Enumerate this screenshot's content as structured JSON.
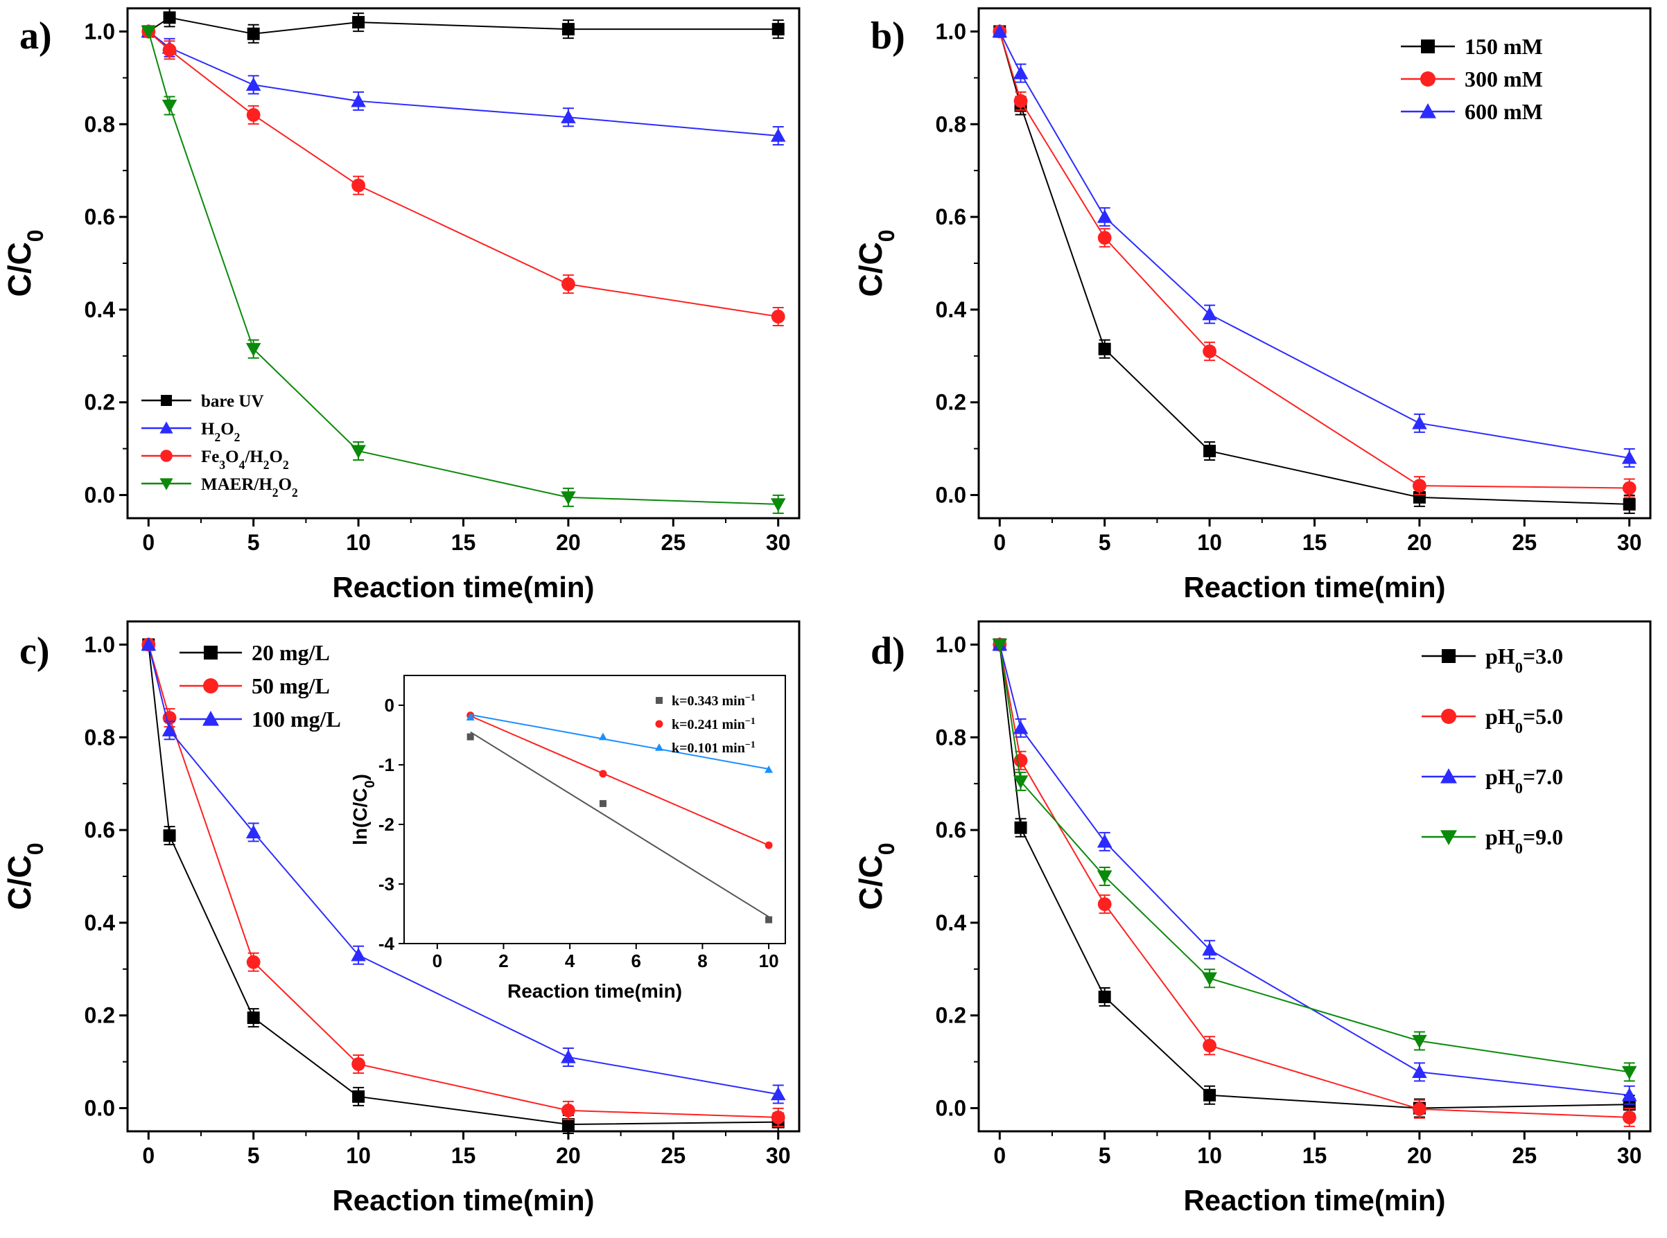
{
  "chart_data": [
    {
      "panel": "a)",
      "type": "line",
      "xlabel": "Reaction time(min)",
      "ylabel": "C/C0",
      "xlim": [
        -1,
        31
      ],
      "ylim": [
        -0.05,
        1.05
      ],
      "xticks": [
        0,
        5,
        10,
        15,
        20,
        25,
        30
      ],
      "yticks": [
        "0.0",
        "0.2",
        "0.4",
        "0.6",
        "0.8",
        "1.0"
      ],
      "legend_position": "bottom-left",
      "series": [
        {
          "name": "bare UV",
          "label_html": "bare UV",
          "color": "#000000",
          "marker": "square",
          "x": [
            0,
            1,
            5,
            10,
            20,
            30
          ],
          "y": [
            1.0,
            1.03,
            0.995,
            1.02,
            1.005,
            1.005
          ]
        },
        {
          "name": "H2O2",
          "label_html": "H<tspan baseline-shift='sub' font-size='70%'>2</tspan>O<tspan baseline-shift='sub' font-size='70%'>2</tspan>",
          "color": "#2b2bff",
          "marker": "triangle-up",
          "x": [
            0,
            1,
            5,
            10,
            20,
            30
          ],
          "y": [
            1.0,
            0.965,
            0.885,
            0.85,
            0.815,
            0.775
          ]
        },
        {
          "name": "Fe3O4/H2O2",
          "label_html": "Fe<tspan baseline-shift='sub' font-size='70%'>3</tspan>O<tspan baseline-shift='sub' font-size='70%'>4</tspan>/H<tspan baseline-shift='sub' font-size='70%'>2</tspan>O<tspan baseline-shift='sub' font-size='70%'>2</tspan>",
          "color": "#ff2020",
          "marker": "circle",
          "x": [
            0,
            1,
            5,
            10,
            20,
            30
          ],
          "y": [
            1.0,
            0.96,
            0.82,
            0.668,
            0.455,
            0.385
          ]
        },
        {
          "name": "MAER/H2O2",
          "label_html": "MAER/H<tspan baseline-shift='sub' font-size='70%'>2</tspan>O<tspan baseline-shift='sub' font-size='70%'>2</tspan>",
          "color": "#0a8a0a",
          "marker": "triangle-down",
          "x": [
            0,
            1,
            5,
            10,
            20,
            30
          ],
          "y": [
            1.0,
            0.84,
            0.315,
            0.095,
            -0.005,
            -0.02
          ]
        }
      ]
    },
    {
      "panel": "b)",
      "type": "line",
      "xlabel": "Reaction time(min)",
      "ylabel": "C/C0",
      "xlim": [
        -1,
        31
      ],
      "ylim": [
        -0.05,
        1.05
      ],
      "xticks": [
        0,
        5,
        10,
        15,
        20,
        25,
        30
      ],
      "yticks": [
        "0.0",
        "0.2",
        "0.4",
        "0.6",
        "0.8",
        "1.0"
      ],
      "legend_position": "top-right",
      "series": [
        {
          "name": "150 mM",
          "label_html": "150 mM",
          "color": "#000000",
          "marker": "square",
          "x": [
            0,
            1,
            5,
            10,
            20,
            30
          ],
          "y": [
            1.0,
            0.84,
            0.315,
            0.095,
            -0.005,
            -0.02
          ]
        },
        {
          "name": "300 mM",
          "label_html": "300 mM",
          "color": "#ff2020",
          "marker": "circle",
          "x": [
            0,
            1,
            5,
            10,
            20,
            30
          ],
          "y": [
            1.0,
            0.85,
            0.555,
            0.31,
            0.02,
            0.015
          ]
        },
        {
          "name": "600 mM",
          "label_html": "600 mM",
          "color": "#2b2bff",
          "marker": "triangle-up",
          "x": [
            0,
            1,
            5,
            10,
            20,
            30
          ],
          "y": [
            1.0,
            0.91,
            0.6,
            0.39,
            0.155,
            0.08
          ]
        }
      ]
    },
    {
      "panel": "c)",
      "type": "line",
      "xlabel": "Reaction time(min)",
      "ylabel": "C/C0",
      "xlim": [
        -1,
        31
      ],
      "ylim": [
        -0.05,
        1.05
      ],
      "xticks": [
        0,
        5,
        10,
        15,
        20,
        25,
        30
      ],
      "yticks": [
        "0.0",
        "0.2",
        "0.4",
        "0.6",
        "0.8",
        "1.0"
      ],
      "legend_position": "top-left",
      "series": [
        {
          "name": "20 mg/L",
          "label_html": "20 mg/L",
          "color": "#000000",
          "marker": "square",
          "x": [
            0,
            1,
            5,
            10,
            20,
            30
          ],
          "y": [
            1.0,
            0.588,
            0.195,
            0.025,
            -0.035,
            -0.03
          ]
        },
        {
          "name": "50 mg/L",
          "label_html": "50 mg/L",
          "color": "#ff2020",
          "marker": "circle",
          "x": [
            0,
            1,
            5,
            10,
            20,
            30
          ],
          "y": [
            1.0,
            0.842,
            0.315,
            0.095,
            -0.005,
            -0.02
          ]
        },
        {
          "name": "100 mg/L",
          "label_html": "100 mg/L",
          "color": "#2b2bff",
          "marker": "triangle-up",
          "x": [
            0,
            1,
            5,
            10,
            20,
            30
          ],
          "y": [
            1.0,
            0.815,
            0.595,
            0.33,
            0.11,
            0.03
          ]
        }
      ],
      "inset": {
        "type": "scatter",
        "xlabel": "Reaction time(min)",
        "ylabel": "ln(C/C0)",
        "xlim": [
          -1,
          10.5
        ],
        "ylim": [
          -4,
          0.5
        ],
        "xticks": [
          0,
          2,
          4,
          6,
          8,
          10
        ],
        "yticks": [
          0,
          -1,
          -2,
          -3,
          -4
        ],
        "legend_position": "top-right",
        "series": [
          {
            "name": "k=0.343 min-1",
            "label_html": "k=0.343 min<tspan baseline-shift='super' font-size='70%'>−1</tspan>",
            "color": "#555555",
            "marker": "square",
            "x": [
              1,
              5,
              10
            ],
            "y": [
              -0.53,
              -1.65,
              -3.6
            ],
            "fit": [
              [
                1,
                -0.45
              ],
              [
                10,
                -3.55
              ]
            ]
          },
          {
            "name": "k=0.241 min-1",
            "label_html": "k=0.241 min<tspan baseline-shift='super' font-size='70%'>−1</tspan>",
            "color": "#ff2020",
            "marker": "circle",
            "x": [
              1,
              5,
              10
            ],
            "y": [
              -0.17,
              -1.15,
              -2.35
            ],
            "fit": [
              [
                1,
                -0.18
              ],
              [
                10,
                -2.35
              ]
            ]
          },
          {
            "name": "k=0.101 min-1",
            "label_html": "k=0.101 min<tspan baseline-shift='super' font-size='70%'>−1</tspan>",
            "color": "#1a8fff",
            "marker": "triangle-up",
            "x": [
              1,
              5,
              10
            ],
            "y": [
              -0.2,
              -0.53,
              -1.08
            ],
            "fit": [
              [
                1,
                -0.16
              ],
              [
                10,
                -1.07
              ]
            ]
          }
        ]
      }
    },
    {
      "panel": "d)",
      "type": "line",
      "xlabel": "Reaction time(min)",
      "ylabel": "C/C0",
      "xlim": [
        -1,
        31
      ],
      "ylim": [
        -0.05,
        1.05
      ],
      "xticks": [
        0,
        5,
        10,
        15,
        20,
        25,
        30
      ],
      "yticks": [
        "0.0",
        "0.2",
        "0.4",
        "0.6",
        "0.8",
        "1.0"
      ],
      "legend_position": "top-right",
      "series": [
        {
          "name": "pH0=3.0",
          "label_html": "pH<tspan baseline-shift='sub' font-size='70%'>0</tspan>=3.0",
          "color": "#000000",
          "marker": "square",
          "x": [
            0,
            1,
            5,
            10,
            20,
            30
          ],
          "y": [
            1.0,
            0.605,
            0.24,
            0.028,
            0.0,
            0.008
          ]
        },
        {
          "name": "pH0=5.0",
          "label_html": "pH<tspan baseline-shift='sub' font-size='70%'>0</tspan>=5.0",
          "color": "#ff2020",
          "marker": "circle",
          "x": [
            0,
            1,
            5,
            10,
            20,
            30
          ],
          "y": [
            1.0,
            0.75,
            0.44,
            0.135,
            -0.002,
            -0.02
          ]
        },
        {
          "name": "pH0=7.0",
          "label_html": "pH<tspan baseline-shift='sub' font-size='70%'>0</tspan>=7.0",
          "color": "#2b2bff",
          "marker": "triangle-up",
          "x": [
            0,
            1,
            5,
            10,
            20,
            30
          ],
          "y": [
            1.0,
            0.82,
            0.575,
            0.342,
            0.078,
            0.028
          ]
        },
        {
          "name": "pH0=9.0",
          "label_html": "pH<tspan baseline-shift='sub' font-size='70%'>0</tspan>=9.0",
          "color": "#0a8a0a",
          "marker": "triangle-down",
          "x": [
            0,
            1,
            5,
            10,
            20,
            30
          ],
          "y": [
            1.0,
            0.705,
            0.5,
            0.28,
            0.145,
            0.078
          ]
        }
      ]
    }
  ]
}
